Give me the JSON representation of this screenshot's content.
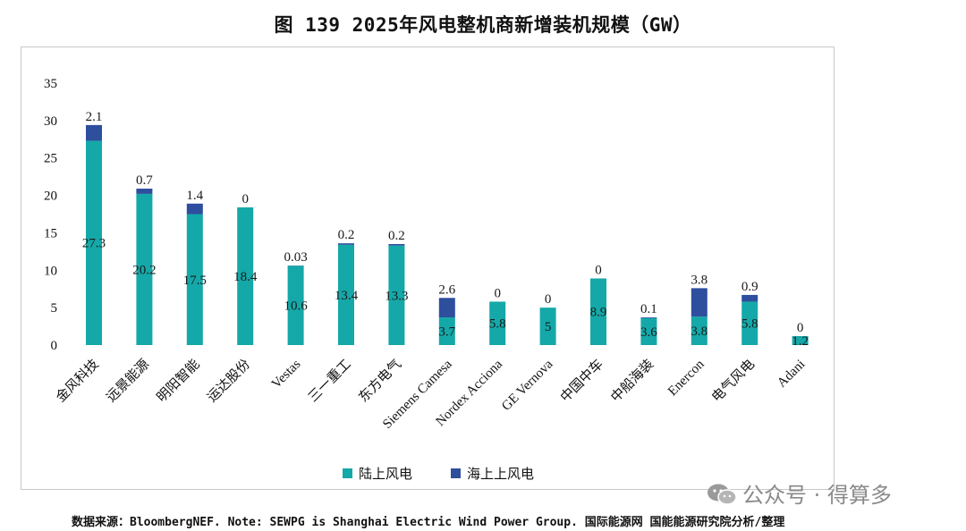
{
  "header": {
    "title": "图 139 2025年风电整机商新增装机规模（GW）"
  },
  "footer": {
    "source": "数据来源：BloombergNEF. Note: SEWPG is Shanghai Electric Wind Power Group. 国际能源网 国能能源研究院分析/整理"
  },
  "watermark": {
    "text": "公众号 · 得算多",
    "icon": "wechat-icon"
  },
  "colors": {
    "onshore": "#15A8A8",
    "offshore": "#2E4E9E",
    "frame": "#c8c8c8"
  },
  "chart_data": {
    "type": "bar",
    "stacked": true,
    "title": "图 139 2025年风电整机商新增装机规模（GW）",
    "ylim": [
      0,
      35
    ],
    "yticks": [
      0,
      5,
      10,
      15,
      20,
      25,
      30,
      35
    ],
    "grid": false,
    "legend_position": "bottom",
    "categories": [
      "金风科技",
      "远景能源",
      "明阳智能",
      "运达股份",
      "Vestas",
      "三一重工",
      "东方电气",
      "Siemens Camesa",
      "Nordex Acciona",
      "GE Vernova",
      "中国中车",
      "中船海装",
      "Enercon",
      "电气风电",
      "Adani"
    ],
    "series": [
      {
        "name": "陆上风电",
        "values": [
          27.3,
          20.2,
          17.5,
          18.4,
          10.6,
          13.4,
          13.3,
          3.7,
          5.8,
          5,
          8.9,
          3.6,
          3.8,
          5.8,
          1.2
        ],
        "labels": [
          "27.3",
          "20.2",
          "17.5",
          "18.4",
          "10.6",
          "13.4",
          "13.3",
          "3.7",
          "5.8",
          "5",
          "8.9",
          "3.6",
          "3.8",
          "5.8",
          "1.2"
        ]
      },
      {
        "name": "海上上风电",
        "values": [
          2.1,
          0.7,
          1.4,
          0,
          0.03,
          0.2,
          0.2,
          2.6,
          0,
          0,
          0,
          0.1,
          3.8,
          0.9,
          0
        ],
        "labels": [
          "2.1",
          "0.7",
          "1.4",
          "0",
          "0.03",
          "0.2",
          "0.2",
          "2.6",
          "0",
          "0",
          "0",
          "0.1",
          "3.8",
          "0.9",
          "0"
        ]
      }
    ]
  }
}
